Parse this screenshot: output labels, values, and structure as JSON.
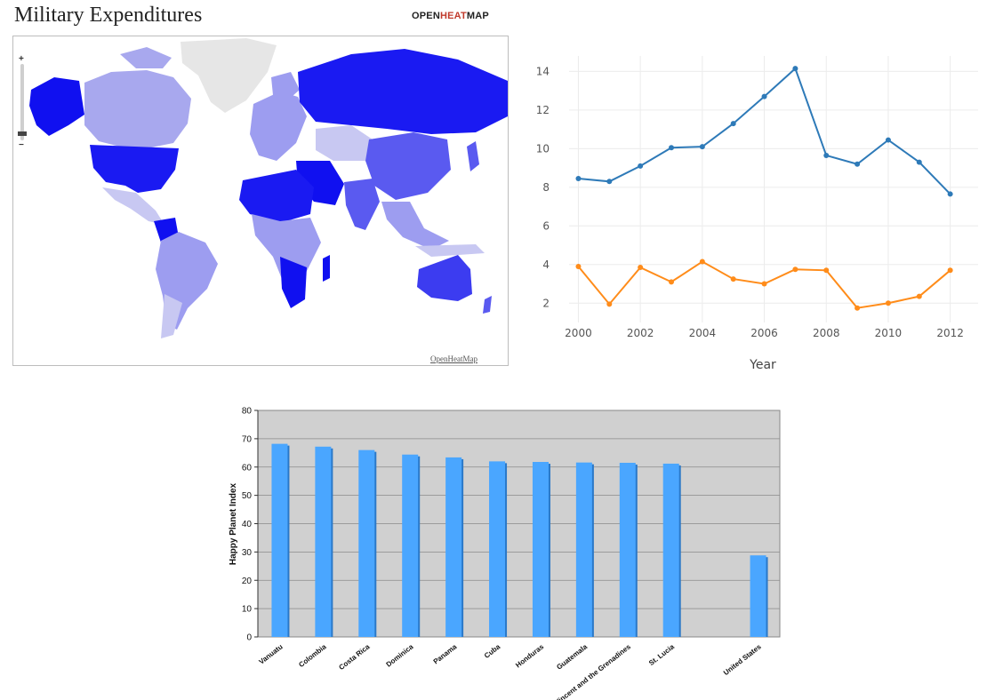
{
  "map": {
    "title": "Military Expenditures",
    "brand": {
      "pre": "OPEN",
      "mid": "HEAT",
      "post": "MAP"
    },
    "credit": "OpenHeatMap",
    "zoom": {
      "plus": "+",
      "minus": "−",
      "level": 0.1
    },
    "colors": {
      "light": "#c8c8f2",
      "mid": "#9d9df0",
      "strong": "#5a5af0",
      "deep": "#1010f0",
      "none": "#e6e6e6"
    }
  },
  "chart_data": [
    {
      "type": "line",
      "title": "",
      "xlabel": "Year",
      "ylabel": "",
      "x": [
        2000,
        2001,
        2002,
        2003,
        2004,
        2005,
        2006,
        2007,
        2008,
        2009,
        2010,
        2011,
        2012
      ],
      "xticks": [
        2000,
        2002,
        2004,
        2006,
        2008,
        2010,
        2012
      ],
      "yticks": [
        2,
        4,
        6,
        8,
        10,
        12,
        14
      ],
      "xlim": [
        1999.7,
        2012.9
      ],
      "ylim": [
        1,
        14.8
      ],
      "grid": true,
      "series": [
        {
          "color": "#2e7ab8",
          "values": [
            8.45,
            8.3,
            9.1,
            10.05,
            10.1,
            11.3,
            12.7,
            14.15,
            9.65,
            9.2,
            10.45,
            9.3,
            7.65
          ]
        },
        {
          "color": "#ff8c1a",
          "values": [
            3.9,
            1.95,
            3.85,
            3.1,
            4.15,
            3.25,
            3.0,
            3.75,
            3.7,
            1.75,
            2.0,
            2.35,
            3.7
          ]
        }
      ]
    },
    {
      "type": "bar",
      "title": "",
      "xlabel": "",
      "ylabel": "Happy Planet Index",
      "categories": [
        "Vanuatu",
        "Colombia",
        "Costa Rica",
        "Dominica",
        "Panama",
        "Cuba",
        "Honduras",
        "Guatemala",
        "St. Vincent and the Grenadines",
        "St. Lucia",
        "",
        "United States"
      ],
      "values": [
        68.2,
        67.2,
        66.0,
        64.4,
        63.4,
        62.0,
        61.8,
        61.6,
        61.5,
        61.2,
        null,
        28.8
      ],
      "ylim": [
        0,
        80
      ],
      "yticks": [
        0,
        10,
        20,
        30,
        40,
        50,
        60,
        70,
        80
      ],
      "grid": true,
      "colors": {
        "bar": "#4aa6ff",
        "bar_shadow": "#2a78c8",
        "plot_bg": "#d0d0d0"
      }
    }
  ]
}
